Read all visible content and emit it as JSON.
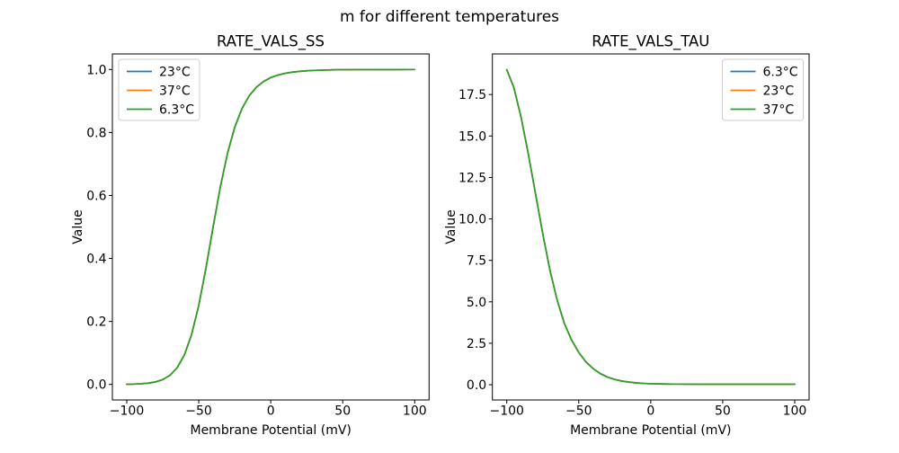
{
  "figure": {
    "suptitle": "m for different temperatures",
    "background": "#ffffff"
  },
  "colors": {
    "blue": "#1f77b4",
    "orange": "#ff7f0e",
    "green": "#2ca02c",
    "text": "#000000",
    "axis": "#000000",
    "legend_border": "#cccccc",
    "background": "#ffffff"
  },
  "chart_data": [
    {
      "type": "line",
      "title": "RATE_VALS_SS",
      "xlabel": "Membrane Potential (mV)",
      "ylabel": "Value",
      "xlim": [
        -110,
        110
      ],
      "ylim": [
        -0.0494,
        1.0494
      ],
      "xticks": [
        -100,
        -50,
        0,
        50,
        100
      ],
      "xtick_labels": [
        "−100",
        "−50",
        "0",
        "50",
        "100"
      ],
      "yticks": [
        0.0,
        0.2,
        0.4,
        0.6,
        0.8,
        1.0
      ],
      "ytick_labels": [
        "0.0",
        "0.2",
        "0.4",
        "0.6",
        "0.8",
        "1.0"
      ],
      "grid": false,
      "legend_position": "upper-left",
      "legend_entries": [
        {
          "label": "23°C",
          "color": "#1f77b4"
        },
        {
          "label": "37°C",
          "color": "#ff7f0e"
        },
        {
          "label": "6.3°C",
          "color": "#2ca02c"
        }
      ],
      "note": "sigmoidal steady-state curve; the three temperature series coincide exactly, so only the last-drawn green curve is visible",
      "x": [
        -100,
        -95,
        -90,
        -85,
        -80,
        -75,
        -70,
        -65,
        -60,
        -55,
        -50,
        -45,
        -40,
        -35,
        -30,
        -25,
        -20,
        -15,
        -10,
        -5,
        0,
        5,
        10,
        15,
        20,
        25,
        30,
        35,
        40,
        45,
        50,
        55,
        60,
        65,
        70,
        75,
        80,
        85,
        90,
        95,
        100
      ],
      "y_shared": [
        0.0005,
        0.0011,
        0.0021,
        0.0041,
        0.008,
        0.0154,
        0.0289,
        0.0529,
        0.0936,
        0.158,
        0.2508,
        0.3692,
        0.5006,
        0.6271,
        0.7343,
        0.8167,
        0.8757,
        0.9163,
        0.9437,
        0.962,
        0.9742,
        0.9823,
        0.9878,
        0.9916,
        0.9941,
        0.9959,
        0.9971,
        0.9979,
        0.9985,
        0.999,
        0.9993,
        0.9995,
        0.9996,
        0.9997,
        0.9998,
        0.9998,
        0.9999,
        0.9999,
        0.9999,
        1.0,
        1.0
      ],
      "series": [
        {
          "name": "23°C",
          "color": "#1f77b4"
        },
        {
          "name": "37°C",
          "color": "#ff7f0e"
        },
        {
          "name": "6.3°C",
          "color": "#2ca02c"
        }
      ]
    },
    {
      "type": "line",
      "title": "RATE_VALS_TAU",
      "xlabel": "Membrane Potential (mV)",
      "ylabel": "Value",
      "xlim": [
        -110,
        110
      ],
      "ylim": [
        -0.9185,
        19.9485
      ],
      "xticks": [
        -100,
        -50,
        0,
        50,
        100
      ],
      "xtick_labels": [
        "−100",
        "−50",
        "0",
        "50",
        "100"
      ],
      "yticks": [
        0.0,
        2.5,
        5.0,
        7.5,
        10.0,
        12.5,
        15.0,
        17.5
      ],
      "ytick_labels": [
        "0.0",
        "2.5",
        "5.0",
        "7.5",
        "10.0",
        "12.5",
        "15.0",
        "17.5"
      ],
      "grid": false,
      "legend_position": "upper-right",
      "legend_entries": [
        {
          "label": "6.3°C",
          "color": "#1f77b4"
        },
        {
          "label": "23°C",
          "color": "#ff7f0e"
        },
        {
          "label": "37°C",
          "color": "#2ca02c"
        }
      ],
      "note": "monotonically decaying time-constant curve from ~19 at −100 mV to ~0 above −30 mV; the three temperature series coincide exactly, so only the last-drawn green curve is visible",
      "x": [
        -100,
        -95,
        -90,
        -85,
        -80,
        -75,
        -70,
        -65,
        -60,
        -55,
        -50,
        -45,
        -40,
        -35,
        -30,
        -25,
        -20,
        -15,
        -10,
        -5,
        0,
        5,
        10,
        15,
        20,
        25,
        30,
        35,
        40,
        45,
        50,
        55,
        60,
        65,
        70,
        75,
        80,
        85,
        90,
        95,
        100
      ],
      "y_shared": [
        19.0,
        17.9,
        16.1,
        13.9,
        11.5,
        9.1,
        6.9,
        5.1,
        3.7,
        2.7,
        1.95,
        1.38,
        0.97,
        0.67,
        0.46,
        0.32,
        0.22,
        0.16,
        0.11,
        0.08,
        0.06,
        0.05,
        0.045,
        0.04,
        0.04,
        0.035,
        0.035,
        0.03,
        0.03,
        0.03,
        0.03,
        0.03,
        0.03,
        0.03,
        0.03,
        0.03,
        0.03,
        0.03,
        0.03,
        0.03,
        0.03
      ],
      "series": [
        {
          "name": "6.3°C",
          "color": "#1f77b4"
        },
        {
          "name": "23°C",
          "color": "#ff7f0e"
        },
        {
          "name": "37°C",
          "color": "#2ca02c"
        }
      ]
    }
  ]
}
